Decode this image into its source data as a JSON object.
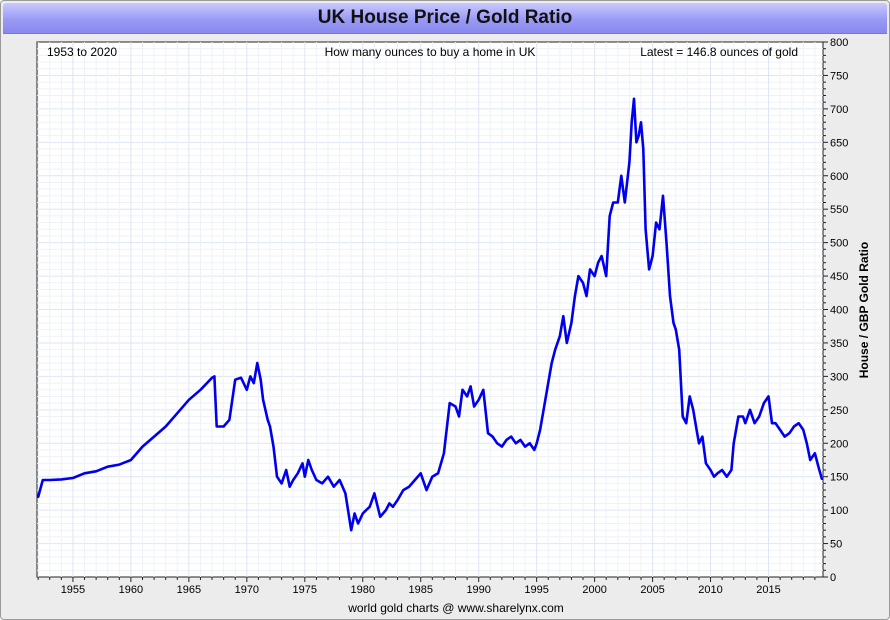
{
  "window": {
    "title": "UK House Price / Gold Ratio"
  },
  "chart_data": {
    "type": "line",
    "title": "UK House Price / Gold Ratio",
    "annotations": {
      "left": "1953 to 2020",
      "center": "How many ounces to buy a home in UK",
      "right": "Latest = 146.8 ounces of gold"
    },
    "xlabel": "",
    "ylabel": "House / GBP Gold Ratio",
    "footer": "world gold charts @ www.sharelynx.com",
    "xlim": [
      1951.9,
      2019.7
    ],
    "ylim": [
      0,
      800
    ],
    "x_ticks": [
      1955,
      1960,
      1965,
      1970,
      1975,
      1980,
      1985,
      1990,
      1995,
      2000,
      2005,
      2010,
      2015
    ],
    "y_ticks": [
      0,
      50,
      100,
      150,
      200,
      250,
      300,
      350,
      400,
      450,
      500,
      550,
      600,
      650,
      700,
      750,
      800
    ],
    "y_axis_position": "right",
    "grid": true,
    "line_color": "#0000ee",
    "series": [
      {
        "x": [
          1952.0,
          1952.4,
          1953.0,
          1954.0,
          1955.0,
          1956.0,
          1957.0,
          1958.0,
          1959.0,
          1960.0,
          1961.0,
          1962.0,
          1963.0,
          1964.0,
          1965.0,
          1966.0,
          1967.0,
          1967.2,
          1967.4,
          1968.0,
          1968.5,
          1969.0,
          1969.5,
          1970.0,
          1970.3,
          1970.6,
          1970.9,
          1971.2,
          1971.4,
          1971.8,
          1972.0,
          1972.3,
          1972.6,
          1973.0,
          1973.4,
          1973.7,
          1974.0,
          1974.4,
          1974.8,
          1975.0,
          1975.3,
          1975.6,
          1976.0,
          1976.5,
          1977.0,
          1977.5,
          1978.0,
          1978.5,
          1979.0,
          1979.3,
          1979.6,
          1980.0,
          1980.3,
          1980.6,
          1981.0,
          1981.5,
          1982.0,
          1982.3,
          1982.6,
          1983.0,
          1983.5,
          1984.0,
          1984.5,
          1985.0,
          1985.5,
          1986.0,
          1986.5,
          1987.0,
          1987.5,
          1988.0,
          1988.3,
          1988.6,
          1989.0,
          1989.3,
          1989.6,
          1990.0,
          1990.4,
          1990.8,
          1991.2,
          1991.6,
          1992.0,
          1992.4,
          1992.8,
          1993.2,
          1993.6,
          1994.0,
          1994.4,
          1994.8,
          1995.0,
          1995.3,
          1995.6,
          1996.0,
          1996.3,
          1996.6,
          1997.0,
          1997.3,
          1997.6,
          1998.0,
          1998.3,
          1998.6,
          1999.0,
          1999.3,
          1999.6,
          2000.0,
          2000.3,
          2000.6,
          2001.0,
          2001.3,
          2001.6,
          2002.0,
          2002.3,
          2002.6,
          2003.0,
          2003.2,
          2003.4,
          2003.6,
          2003.8,
          2004.0,
          2004.2,
          2004.4,
          2004.7,
          2005.0,
          2005.3,
          2005.6,
          2005.9,
          2006.2,
          2006.5,
          2006.8,
          2007.0,
          2007.3,
          2007.6,
          2007.9,
          2008.2,
          2008.5,
          2008.8,
          2009.0,
          2009.3,
          2009.6,
          2010.0,
          2010.3,
          2010.6,
          2011.0,
          2011.4,
          2011.8,
          2012.0,
          2012.4,
          2012.8,
          2013.0,
          2013.4,
          2013.8,
          2014.2,
          2014.6,
          2015.0,
          2015.3,
          2015.6,
          2016.0,
          2016.4,
          2016.8,
          2017.2,
          2017.6,
          2018.0,
          2018.3,
          2018.6,
          2019.0,
          2019.3,
          2019.6
        ],
        "values": [
          120,
          145,
          145,
          146,
          148,
          155,
          158,
          165,
          168,
          175,
          195,
          210,
          225,
          245,
          265,
          280,
          298,
          300,
          225,
          225,
          235,
          295,
          298,
          280,
          300,
          290,
          320,
          295,
          265,
          235,
          225,
          195,
          150,
          140,
          160,
          135,
          145,
          155,
          170,
          150,
          175,
          160,
          145,
          140,
          150,
          135,
          145,
          125,
          70,
          95,
          80,
          95,
          100,
          105,
          125,
          90,
          100,
          110,
          105,
          115,
          130,
          135,
          145,
          155,
          130,
          150,
          155,
          185,
          260,
          255,
          240,
          280,
          270,
          285,
          255,
          265,
          280,
          215,
          210,
          200,
          195,
          205,
          210,
          200,
          205,
          195,
          200,
          190,
          200,
          220,
          250,
          290,
          320,
          340,
          360,
          390,
          350,
          380,
          420,
          450,
          440,
          420,
          460,
          450,
          470,
          480,
          450,
          540,
          560,
          560,
          600,
          560,
          620,
          680,
          715,
          650,
          660,
          680,
          640,
          520,
          460,
          480,
          530,
          520,
          570,
          500,
          420,
          380,
          370,
          340,
          240,
          230,
          270,
          250,
          220,
          200,
          210,
          170,
          160,
          150,
          155,
          160,
          150,
          160,
          200,
          240,
          240,
          230,
          250,
          230,
          240,
          260,
          270,
          230,
          230,
          220,
          210,
          215,
          225,
          230,
          220,
          200,
          175,
          185,
          165,
          147
        ]
      }
    ]
  }
}
